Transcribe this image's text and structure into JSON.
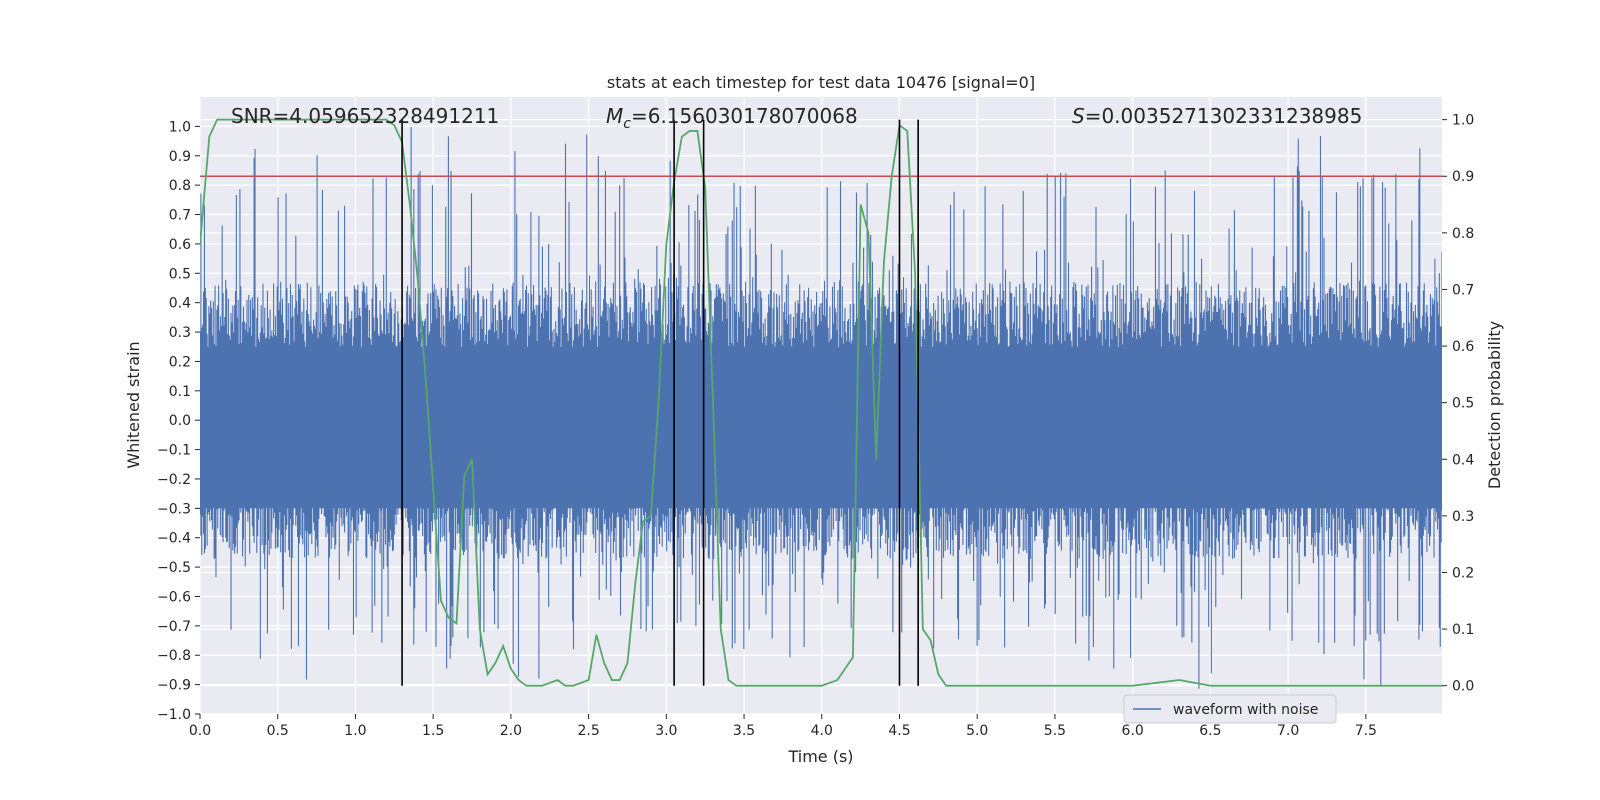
{
  "chart_data": {
    "type": "line",
    "title": "stats at each timestep for test data 10476 [signal=0]",
    "xlabel": "Time (s)",
    "ylabel_left": "Whitened strain",
    "ylabel_right": "Detection probability",
    "xlim": [
      0.0,
      7.99
    ],
    "ylim_left": [
      -1.0,
      1.1
    ],
    "ylim_right": [
      -0.05,
      1.04
    ],
    "x_ticks": [
      "0.0",
      "0.5",
      "1.0",
      "1.5",
      "2.0",
      "2.5",
      "3.0",
      "3.5",
      "4.0",
      "4.5",
      "5.0",
      "5.5",
      "6.0",
      "6.5",
      "7.0",
      "7.5"
    ],
    "y_ticks_left": [
      "-1.0",
      "-0.9",
      "-0.8",
      "-0.7",
      "-0.6",
      "-0.5",
      "-0.4",
      "-0.3",
      "-0.2",
      "-0.1",
      "0.0",
      "0.1",
      "0.2",
      "0.3",
      "0.4",
      "0.5",
      "0.6",
      "0.7",
      "0.8",
      "0.9",
      "1.0"
    ],
    "y_ticks_right": [
      "0.0",
      "0.1",
      "0.2",
      "0.3",
      "0.4",
      "0.5",
      "0.6",
      "0.7",
      "0.8",
      "0.9",
      "1.0"
    ],
    "annotations": {
      "snr": "SNR=4.059652328491211",
      "mc_symbol": "M",
      "mc_sub": "c",
      "mc_value": "=6.156030178070068",
      "s_symbol": "S",
      "s_value": "=0.0035271302331238985"
    },
    "threshold": {
      "value": 0.9,
      "color": "#c44e52"
    },
    "event_boundaries": [
      1.3,
      3.05,
      3.24,
      4.5,
      4.62
    ],
    "waveform": {
      "name": "waveform with noise",
      "color": "#4c72b0",
      "sample_rate": 2048,
      "typical_range": [
        -0.45,
        0.45
      ],
      "peak_max": 1.0,
      "peak_min": -0.92
    },
    "detection_probability": {
      "color": "#55a868",
      "x": [
        0.0,
        0.06,
        0.11,
        0.2,
        0.4,
        0.6,
        0.8,
        1.0,
        1.1,
        1.2,
        1.25,
        1.3,
        1.35,
        1.4,
        1.45,
        1.5,
        1.55,
        1.6,
        1.65,
        1.7,
        1.75,
        1.8,
        1.85,
        1.9,
        1.95,
        2.0,
        2.05,
        2.1,
        2.2,
        2.3,
        2.35,
        2.4,
        2.5,
        2.55,
        2.6,
        2.65,
        2.7,
        2.75,
        2.8,
        2.85,
        2.9,
        2.95,
        3.0,
        3.05,
        3.1,
        3.15,
        3.2,
        3.25,
        3.3,
        3.35,
        3.4,
        3.45,
        3.5,
        3.55,
        3.6,
        3.8,
        4.0,
        4.1,
        4.2,
        4.25,
        4.3,
        4.35,
        4.4,
        4.45,
        4.5,
        4.55,
        4.6,
        4.65,
        4.7,
        4.75,
        4.8,
        4.85,
        4.9,
        5.0,
        5.5,
        6.0,
        6.3,
        6.5,
        7.0,
        7.5,
        7.8,
        7.99
      ],
      "y": [
        0.78,
        0.97,
        1.0,
        1.0,
        1.0,
        1.0,
        1.0,
        1.0,
        1.0,
        1.0,
        0.99,
        0.96,
        0.85,
        0.72,
        0.55,
        0.35,
        0.15,
        0.12,
        0.11,
        0.37,
        0.4,
        0.1,
        0.02,
        0.04,
        0.07,
        0.03,
        0.01,
        0.0,
        0.0,
        0.01,
        0.0,
        0.0,
        0.01,
        0.09,
        0.04,
        0.01,
        0.01,
        0.04,
        0.18,
        0.29,
        0.3,
        0.5,
        0.78,
        0.89,
        0.97,
        0.98,
        0.98,
        0.88,
        0.5,
        0.1,
        0.01,
        0.0,
        0.0,
        0.0,
        0.0,
        0.0,
        0.0,
        0.01,
        0.05,
        0.85,
        0.8,
        0.4,
        0.75,
        0.9,
        0.99,
        0.98,
        0.73,
        0.1,
        0.08,
        0.02,
        0.0,
        0.0,
        0.0,
        0.0,
        0.0,
        0.0,
        0.01,
        0.0,
        0.0,
        0.0,
        0.0,
        0.0
      ]
    },
    "background": "#eaeaf2",
    "grid": true,
    "legend_position": "bottom-right-center"
  }
}
